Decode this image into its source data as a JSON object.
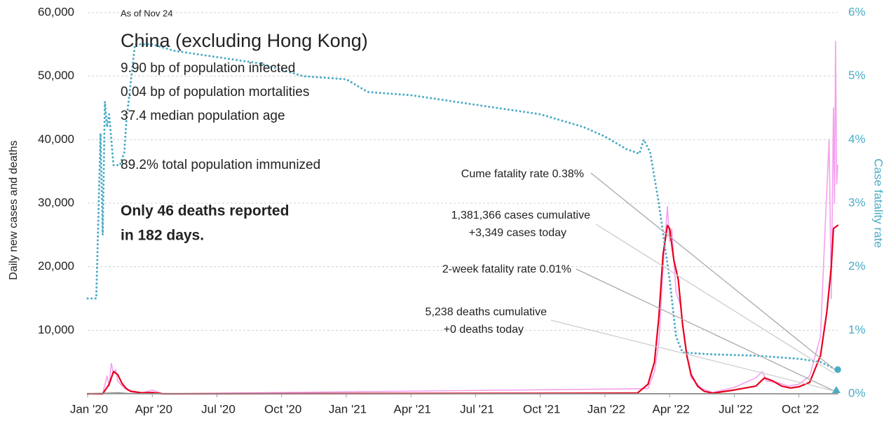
{
  "chart_data": {
    "type": "line",
    "subtitle": "As of Nov 24",
    "title": "China (excluding Hong Kong)",
    "stats": [
      "9.90 bp of population infected",
      "0.04 bp of population mortalities",
      "37.4 median population age",
      "89.2% total population immunized"
    ],
    "note": [
      "Only 46 deaths reported",
      "in 182 days."
    ],
    "annotations": [
      {
        "lines": [
          "Cume fatality rate 0.38%"
        ]
      },
      {
        "lines": [
          "1,381,366 cases cumulative",
          "+3,349 cases today"
        ]
      },
      {
        "lines": [
          "2-week fatality rate 0.01%"
        ]
      },
      {
        "lines": [
          "5,238 deaths cumulative",
          "+0 deaths today"
        ]
      }
    ],
    "ylabel": "Daily new cases and deaths",
    "y2label": "Case fatality rate",
    "xlim": [
      0,
      34.8
    ],
    "xticks": [
      {
        "value": 0,
        "label": "Jan '20"
      },
      {
        "value": 3,
        "label": "Apr '20"
      },
      {
        "value": 6,
        "label": "Jul '20"
      },
      {
        "value": 9,
        "label": "Oct '20"
      },
      {
        "value": 12,
        "label": "Jan '21"
      },
      {
        "value": 15,
        "label": "Apr '21"
      },
      {
        "value": 18,
        "label": "Jul '21"
      },
      {
        "value": 21,
        "label": "Oct '21"
      },
      {
        "value": 24,
        "label": "Jan '22"
      },
      {
        "value": 27,
        "label": "Apr '22"
      },
      {
        "value": 30,
        "label": "Jul '22"
      },
      {
        "value": 33,
        "label": "Oct '22"
      }
    ],
    "ylim": [
      0,
      60000
    ],
    "yticks": [
      {
        "value": 10000,
        "label": "10,000"
      },
      {
        "value": 20000,
        "label": "20,000"
      },
      {
        "value": 30000,
        "label": "30,000"
      },
      {
        "value": 40000,
        "label": "40,000"
      },
      {
        "value": 50000,
        "label": "50,000"
      },
      {
        "value": 60000,
        "label": "60,000"
      }
    ],
    "y2lim": [
      0,
      6
    ],
    "y2ticks": [
      {
        "value": 0,
        "label": "0%"
      },
      {
        "value": 1,
        "label": "1%"
      },
      {
        "value": 2,
        "label": "2%"
      },
      {
        "value": 3,
        "label": "3%"
      },
      {
        "value": 4,
        "label": "4%"
      },
      {
        "value": 5,
        "label": "5%"
      },
      {
        "value": 6,
        "label": "6%"
      }
    ],
    "grid": true,
    "series": [
      {
        "color": "#f4a0ee",
        "style": "solid",
        "x": [
          0,
          0.7,
          0.9,
          1.0,
          1.1,
          1.2,
          1.3,
          1.4,
          1.5,
          1.7,
          2.0,
          2.5,
          3.0,
          3.5,
          26.0,
          26.3,
          26.5,
          26.7,
          26.9,
          27.0,
          27.1,
          27.3,
          27.5,
          27.8,
          28.0,
          28.5,
          29.0,
          30.0,
          31.0,
          31.3,
          31.5,
          32.0,
          32.5,
          33.0,
          33.5,
          34.0,
          34.2,
          34.4,
          34.5,
          34.6,
          34.65,
          34.7,
          34.75,
          34.8
        ],
        "values": [
          0,
          0,
          2800,
          1200,
          4800,
          3200,
          3800,
          2000,
          1600,
          900,
          300,
          100,
          600,
          0,
          800,
          3500,
          8000,
          20000,
          29500,
          24000,
          26000,
          16000,
          14000,
          6000,
          2500,
          800,
          200,
          1000,
          2500,
          3500,
          2000,
          1800,
          1200,
          1500,
          2800,
          9000,
          25000,
          40000,
          15000,
          45000,
          30000,
          55500,
          33000,
          36000
        ]
      },
      {
        "color": "#e8001c",
        "style": "solid",
        "x": [
          0,
          0.7,
          1.0,
          1.2,
          1.4,
          1.6,
          1.8,
          2.0,
          2.5,
          3.0,
          3.5,
          25.5,
          26.0,
          26.3,
          26.5,
          26.7,
          26.9,
          27.0,
          27.2,
          27.4,
          27.6,
          27.8,
          28.0,
          28.3,
          28.6,
          29.0,
          30.0,
          31.0,
          31.4,
          31.8,
          32.2,
          32.6,
          33.0,
          33.5,
          34.0,
          34.3,
          34.5,
          34.6,
          34.8
        ],
        "values": [
          0,
          0,
          1500,
          3500,
          3000,
          1600,
          800,
          400,
          150,
          200,
          0,
          100,
          1500,
          5000,
          12000,
          22000,
          26500,
          26000,
          21000,
          18000,
          11000,
          6000,
          3000,
          1200,
          400,
          100,
          600,
          1200,
          2500,
          2000,
          1200,
          900,
          1100,
          1800,
          6000,
          13000,
          20000,
          26000,
          26500
        ]
      },
      {
        "color": "#8c8c8c",
        "style": "solid",
        "x": [
          0,
          1.0,
          1.4,
          2.0,
          34.8
        ],
        "values": [
          0,
          100,
          150,
          20,
          0
        ]
      },
      {
        "color": "#4aacc6",
        "style": "dotted",
        "axis": "y2",
        "x": [
          0,
          0.4,
          0.5,
          0.6,
          0.7,
          0.8,
          0.9,
          1.0,
          1.2,
          1.5,
          1.7,
          1.8,
          2.2,
          3.0,
          4.0,
          6.0,
          8.0,
          10.0,
          12.0,
          13.0,
          15.0,
          18.0,
          21.0,
          23.0,
          24.0,
          25.0,
          25.6,
          25.8,
          26.1,
          26.5,
          27.0,
          27.3,
          27.6,
          29.0,
          31.0,
          33.0,
          34.0,
          34.5,
          34.8
        ],
        "values": [
          1.5,
          1.5,
          2.8,
          4.1,
          2.5,
          4.6,
          4.2,
          4.4,
          3.6,
          3.6,
          3.8,
          4.3,
          5.5,
          5.5,
          5.4,
          5.3,
          5.2,
          5.0,
          4.95,
          4.75,
          4.7,
          4.55,
          4.4,
          4.2,
          4.05,
          3.85,
          3.78,
          4.0,
          3.8,
          3.0,
          1.8,
          0.9,
          0.65,
          0.62,
          0.6,
          0.55,
          0.5,
          0.42,
          0.38
        ]
      }
    ]
  }
}
